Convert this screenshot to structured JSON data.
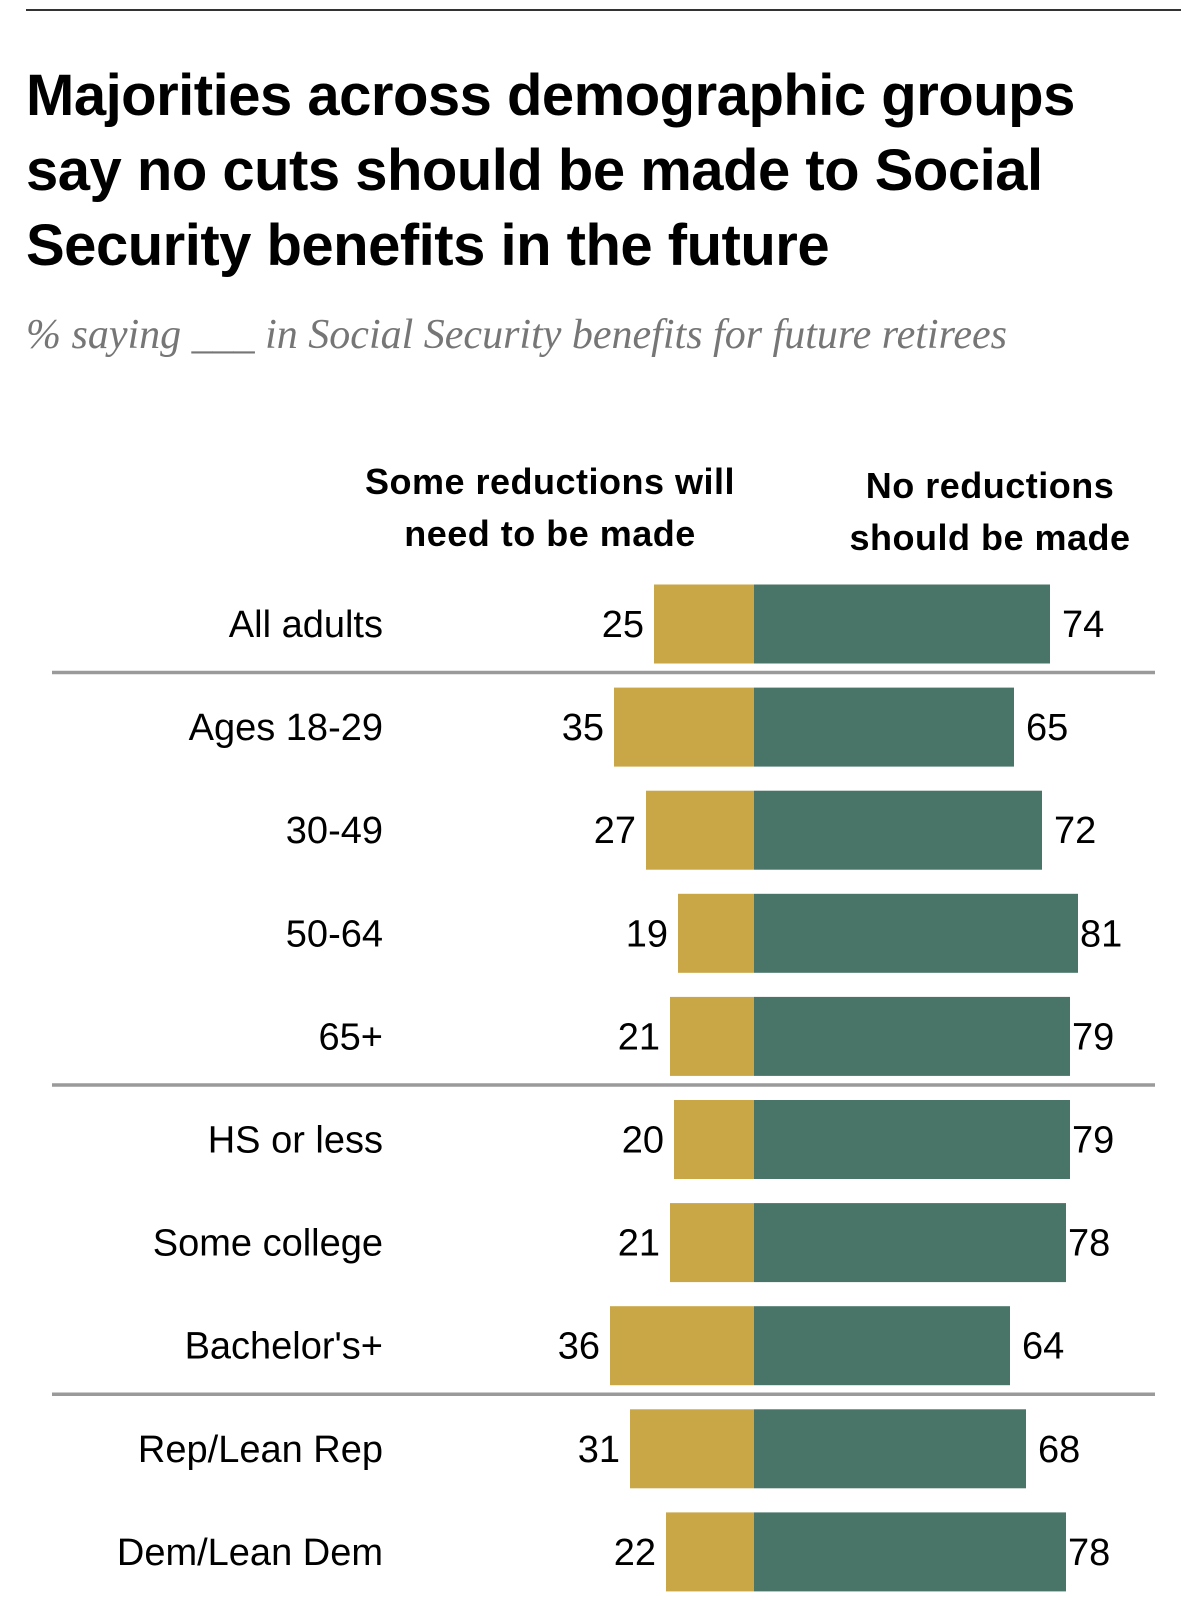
{
  "chart_data": {
    "type": "bar",
    "title": "Majorities across demographic groups say no cuts should be made to Social Security benefits in the future",
    "subtitle": "% saying ___ in Social Security benefits for future retirees",
    "stacking": "diverging",
    "categories": [
      "All adults",
      "Ages 18-29",
      "30-49",
      "50-64",
      "65+",
      "HS or less",
      "Some college",
      "Bachelor's+",
      "Rep/Lean Rep",
      "Dem/Lean Dem"
    ],
    "groups_dividers_after": [
      "All adults",
      "65+",
      "Bachelor's+"
    ],
    "series": [
      {
        "name": "Some reductions will need to be made",
        "color": "#C9A646",
        "values": [
          25,
          35,
          27,
          19,
          21,
          20,
          21,
          36,
          31,
          22
        ]
      },
      {
        "name": "No reductions should be made",
        "color": "#487567",
        "values": [
          74,
          65,
          72,
          81,
          79,
          79,
          78,
          64,
          68,
          78
        ]
      }
    ],
    "grid": false,
    "legend": "column headers above bars"
  }
}
